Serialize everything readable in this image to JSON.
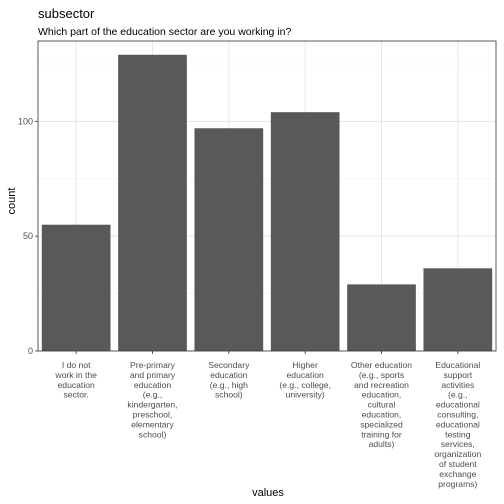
{
  "chart_data": {
    "type": "bar",
    "title": "subsector",
    "subtitle": "Which part of the education sector are you working in?",
    "xlabel": "values",
    "ylabel": "count",
    "ylim": [
      0,
      135
    ],
    "yticks": [
      0,
      50,
      100
    ],
    "grid": true,
    "bar_color": "#595959",
    "categories": [
      "I do not work in the education sector.",
      "Pre-primary and primary education (e.g., kindergarten, preschool, elementary school)",
      "Secondary education (e.g., high school)",
      "Higher education (e.g., college, university)",
      "Other education (e.g., sports and recreation education, cultural education, specialized training for adults)",
      "Educational support activities (e.g., educational consulting, educational testing services, organization of student exchange programs)"
    ],
    "category_lines": [
      [
        "I do not",
        "work in the",
        "education",
        "sector."
      ],
      [
        "Pre-primary",
        "and primary",
        "education",
        "(e.g.,",
        "kindergarten,",
        "preschool,",
        "elementary",
        "school)"
      ],
      [
        "Secondary",
        "education",
        "(e.g., high",
        "school)"
      ],
      [
        "Higher",
        "education",
        "(e.g., college,",
        "university)"
      ],
      [
        "Other education",
        "(e.g., sports",
        "and recreation",
        "education,",
        "cultural",
        "education,",
        "specialized",
        "training for",
        "adults)"
      ],
      [
        "Educational",
        "support",
        "activities",
        "(e.g.,",
        "educational",
        "consulting,",
        "educational",
        "testing",
        "services,",
        "organization",
        "of student",
        "exchange",
        "programs)"
      ]
    ],
    "values": [
      55,
      129,
      97,
      104,
      29,
      36
    ]
  }
}
